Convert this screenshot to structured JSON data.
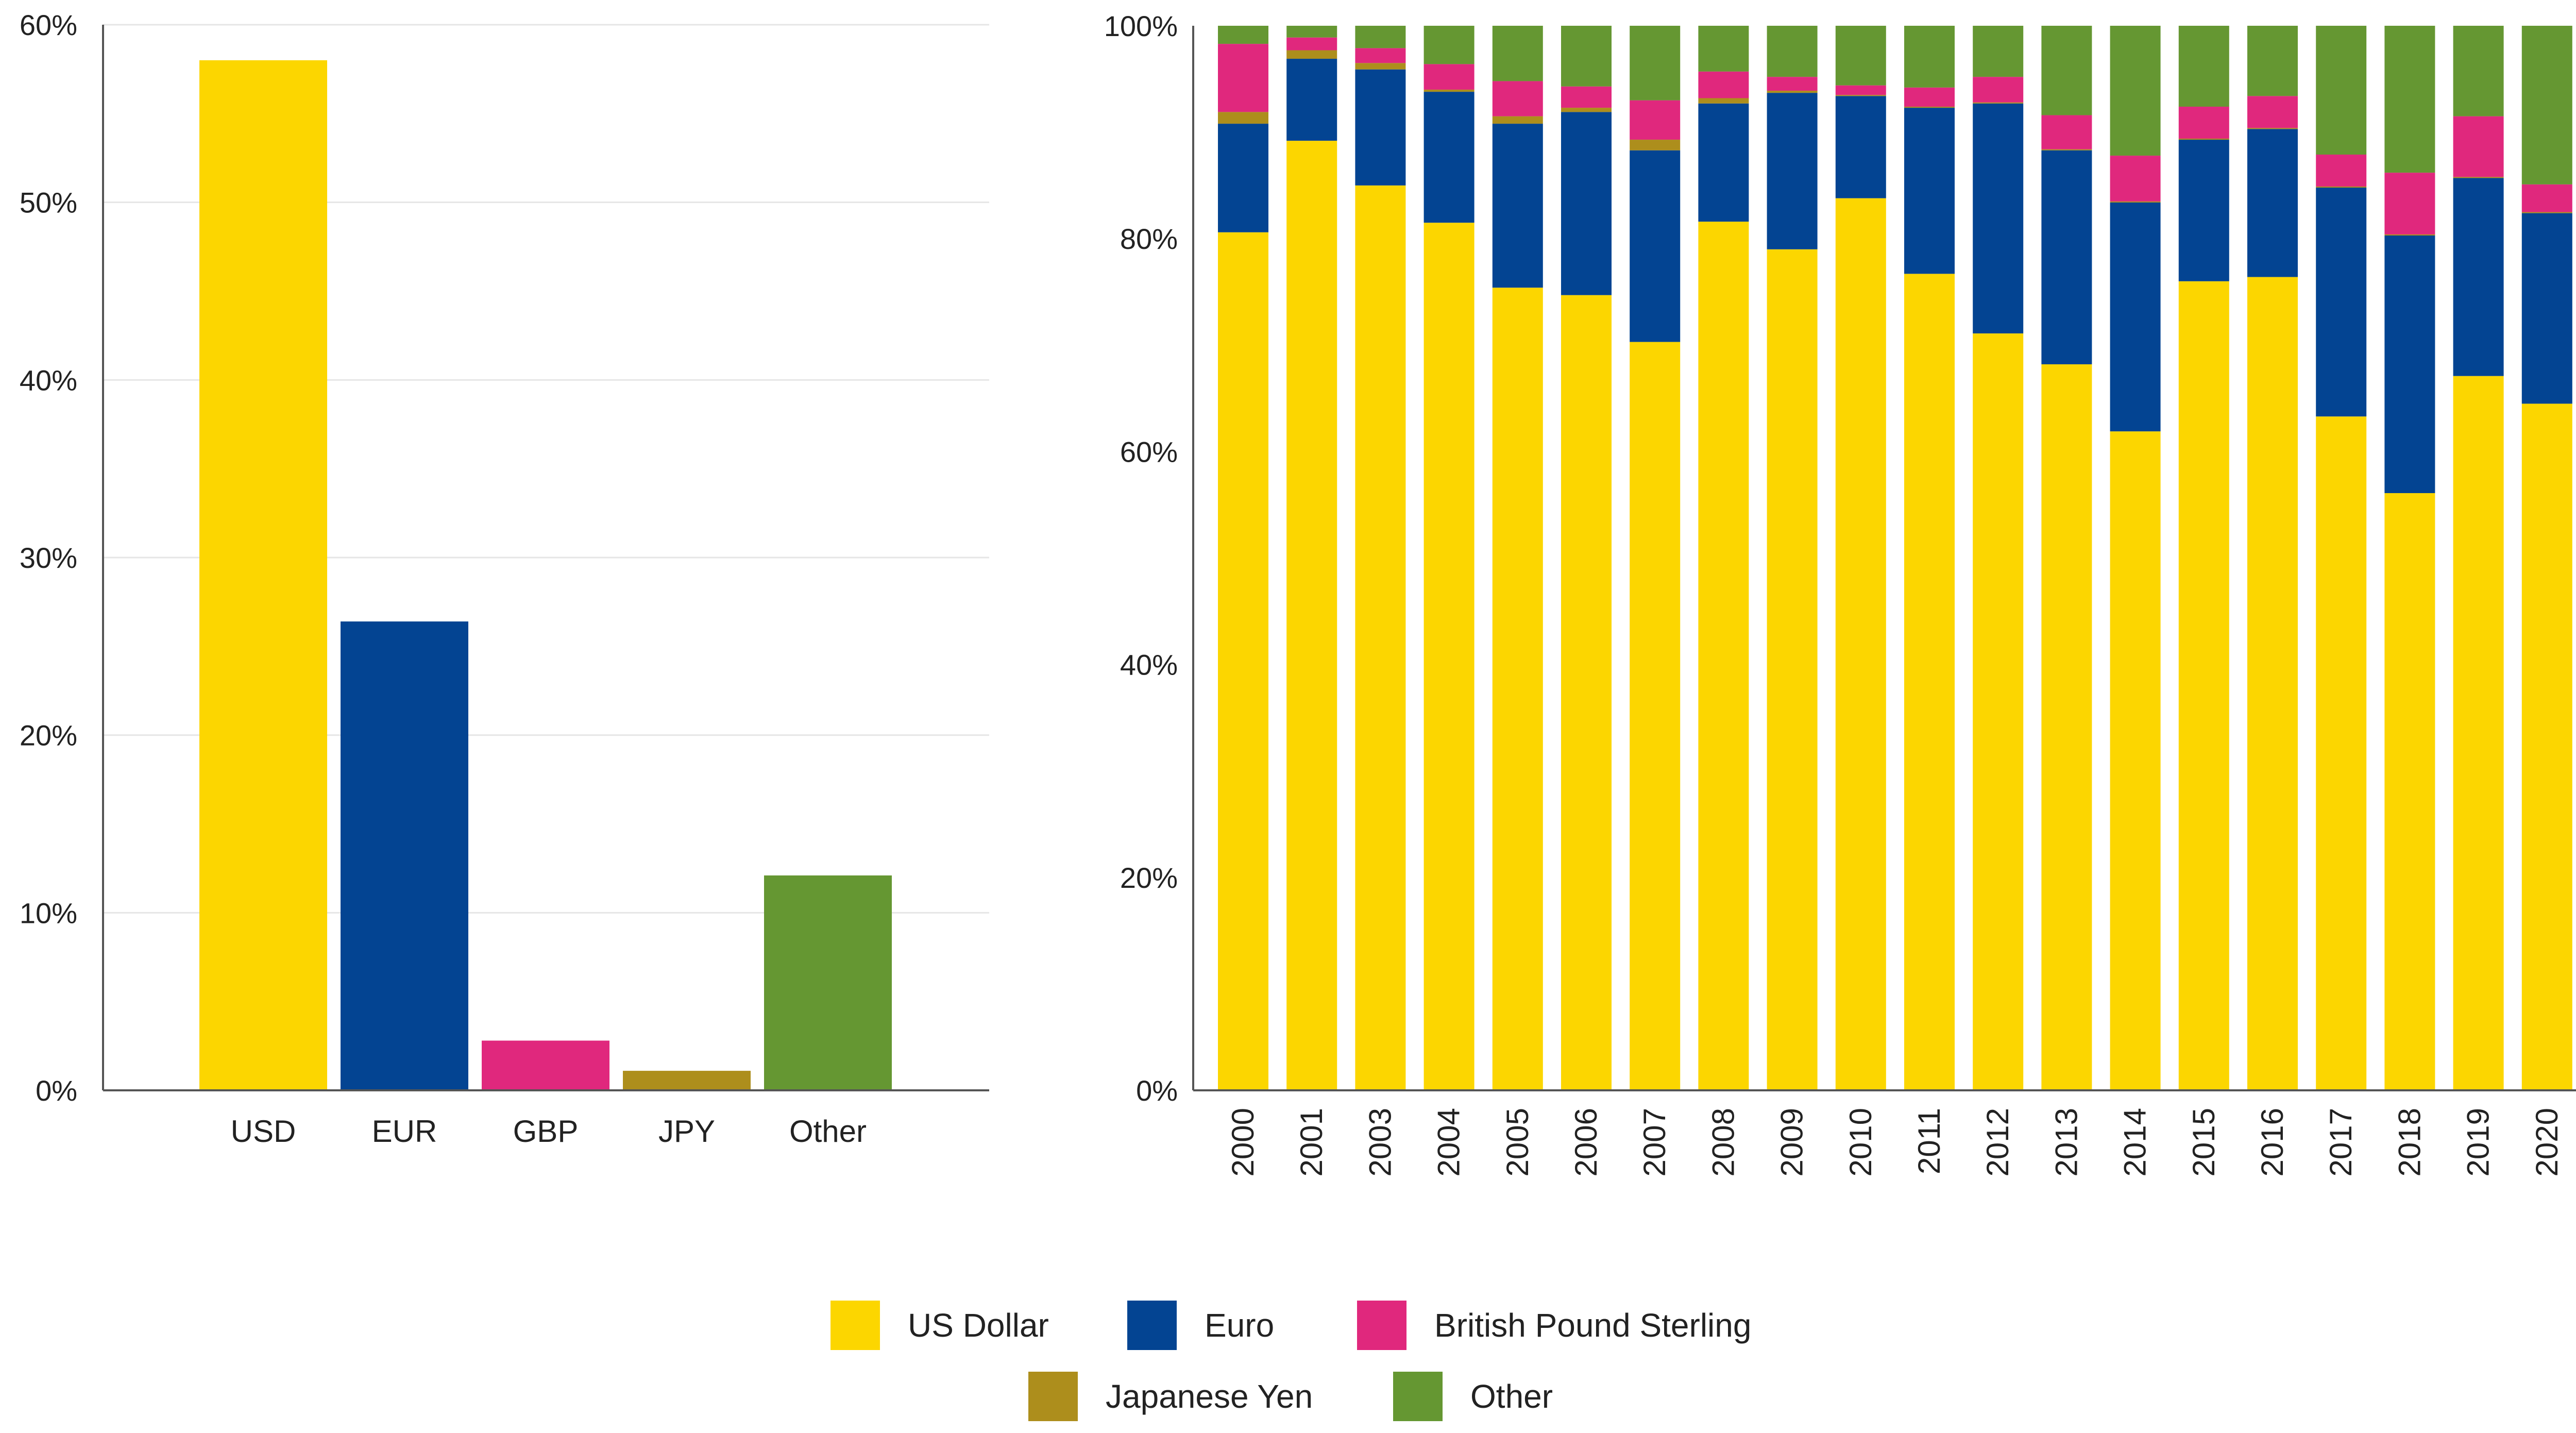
{
  "colors": {
    "usd": "#FCD600",
    "eur": "#034492",
    "gbp": "#E0287D",
    "jpy": "#AD8E1C",
    "other": "#659732",
    "grid": "#e6e6e6",
    "axis": "#555555"
  },
  "legend": {
    "items": [
      {
        "key": "usd",
        "label": "US Dollar"
      },
      {
        "key": "eur",
        "label": "Euro"
      },
      {
        "key": "gbp",
        "label": "British Pound Sterling"
      },
      {
        "key": "jpy",
        "label": "Japanese Yen"
      },
      {
        "key": "other",
        "label": "Other"
      }
    ]
  },
  "chart_data": [
    {
      "type": "bar",
      "title": "",
      "xlabel": "",
      "ylabel": "",
      "ylim": [
        0,
        60
      ],
      "yticks": [
        "0%",
        "10%",
        "20%",
        "30%",
        "40%",
        "50%",
        "60%"
      ],
      "categories": [
        "USD",
        "EUR",
        "GBP",
        "JPY",
        "Other"
      ],
      "color_keys": [
        "usd",
        "eur",
        "gbp",
        "jpy",
        "other"
      ],
      "values": [
        58,
        26.4,
        2.8,
        1.1,
        12.1
      ],
      "grid": true
    },
    {
      "type": "bar",
      "stacked": true,
      "title": "",
      "xlabel": "",
      "ylabel": "",
      "ylim": [
        0,
        100
      ],
      "yticks": [
        "0%",
        "20%",
        "40%",
        "60%",
        "80%",
        "100%"
      ],
      "categories": [
        "2000",
        "2001",
        "2003",
        "2004",
        "2005",
        "2006",
        "2007",
        "2008",
        "2009",
        "2010",
        "2011",
        "2012",
        "2013",
        "2014",
        "2015",
        "2016",
        "2017",
        "2018",
        "2019",
        "2020"
      ],
      "series": [
        {
          "name": "US Dollar",
          "key": "usd",
          "values": [
            80.6,
            89.2,
            85,
            81.5,
            75.4,
            74.7,
            70.3,
            81.6,
            79,
            83.8,
            76.7,
            71.1,
            68.2,
            61.9,
            76,
            76.4,
            63.3,
            56.1,
            67.1,
            64.5
          ]
        },
        {
          "name": "Euro",
          "key": "eur",
          "values": [
            10.2,
            7.7,
            10.9,
            12.3,
            15.4,
            17.2,
            18,
            11.1,
            14.7,
            9.6,
            15.6,
            21.6,
            20.1,
            21.5,
            13.3,
            13.9,
            21.5,
            24.2,
            18.6,
            17.9
          ]
        },
        {
          "name": "Japanese Yen",
          "key": "jpy",
          "values": [
            1.1,
            0.8,
            0.6,
            0.2,
            0.7,
            0.4,
            1,
            0.5,
            0.2,
            0.1,
            0.1,
            0.1,
            0.1,
            0.1,
            0.1,
            0.1,
            0.1,
            0.1,
            0.1,
            0.1
          ]
        },
        {
          "name": "British Pound Sterling",
          "key": "gbp",
          "values": [
            6.4,
            1.2,
            1.4,
            2.4,
            3.3,
            2,
            3.7,
            2.5,
            1.3,
            0.9,
            1.8,
            2.4,
            3.2,
            4.3,
            3,
            3,
            3,
            5.8,
            5.7,
            2.6
          ]
        },
        {
          "name": "Other",
          "key": "other",
          "values": [
            1.7,
            1.1,
            2.1,
            3.6,
            5.2,
            5.7,
            7,
            4.3,
            4.8,
            5.6,
            5.8,
            4.8,
            8.4,
            12.2,
            7.6,
            6.6,
            12.1,
            13.8,
            8.5,
            14.9
          ]
        }
      ],
      "grid": false
    }
  ]
}
